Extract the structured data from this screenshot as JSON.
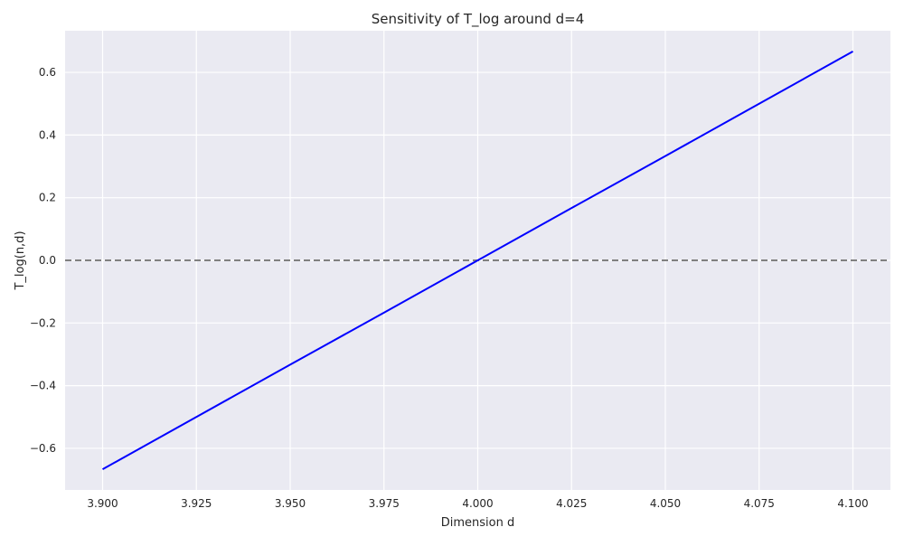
{
  "chart_data": {
    "type": "line",
    "title": "Sensitivity of T_log around d=4",
    "xlabel": "Dimension d",
    "ylabel": "T_log(n,d)",
    "xlim": [
      3.89,
      4.11
    ],
    "ylim": [
      -0.733,
      0.733
    ],
    "xticks": [
      3.9,
      3.925,
      3.95,
      3.975,
      4.0,
      4.025,
      4.05,
      4.075,
      4.1
    ],
    "xtick_labels": [
      "3.900",
      "3.925",
      "3.950",
      "3.975",
      "4.000",
      "4.025",
      "4.050",
      "4.075",
      "4.100"
    ],
    "yticks": [
      -0.6,
      -0.4,
      -0.2,
      0.0,
      0.2,
      0.4,
      0.6
    ],
    "ytick_labels": [
      "−0.6",
      "−0.4",
      "−0.2",
      "0.0",
      "0.2",
      "0.4",
      "0.6"
    ],
    "grid": true,
    "series": [
      {
        "color": "#0000ff",
        "style": "solid",
        "x": [
          3.9,
          3.925,
          3.95,
          3.975,
          4.0,
          4.025,
          4.05,
          4.075,
          4.1
        ],
        "y": [
          -0.667,
          -0.5,
          -0.333,
          -0.167,
          0.0,
          0.167,
          0.333,
          0.5,
          0.667
        ]
      }
    ],
    "reference_lines": [
      {
        "orientation": "horizontal",
        "y": 0.0,
        "color": "#808080",
        "style": "dashed"
      }
    ],
    "background_color": "#eaeaf2",
    "grid_color": "#ffffff"
  }
}
